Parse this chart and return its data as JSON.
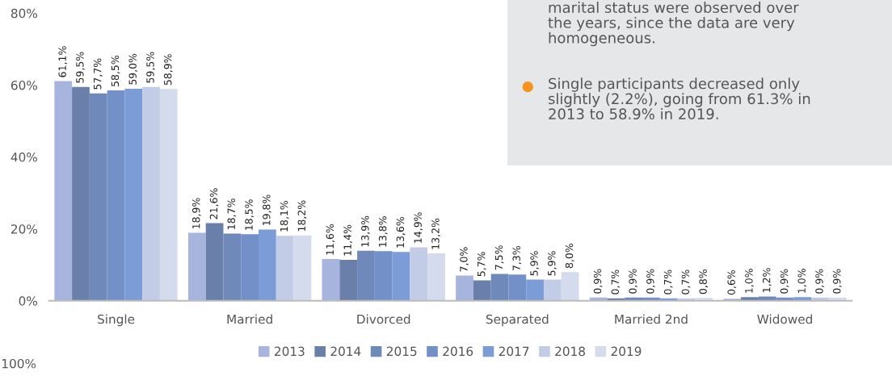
{
  "chart_data": {
    "type": "bar",
    "categories": [
      "Single",
      "Married",
      "Divorced",
      "Separated",
      "Married 2nd",
      "Widowed"
    ],
    "series": [
      {
        "name": "2013",
        "color": "#a7b5de",
        "values": [
          61.1,
          18.9,
          11.6,
          7.0,
          0.9,
          0.6
        ],
        "value_labels": [
          "61,1%",
          "18,9%",
          "11,6%",
          "7,0%",
          "0,9%",
          "0,6%"
        ]
      },
      {
        "name": "2014",
        "color": "#6a80ab",
        "values": [
          59.5,
          21.6,
          11.4,
          5.7,
          0.7,
          1.0
        ],
        "value_labels": [
          "59,5%",
          "21,6%",
          "11,4%",
          "5,7%",
          "0,7%",
          "1,0%"
        ]
      },
      {
        "name": "2015",
        "color": "#6f8aba",
        "values": [
          57.7,
          18.7,
          13.9,
          7.5,
          0.9,
          1.2
        ],
        "value_labels": [
          "57,7%",
          "18,7%",
          "13,9%",
          "7,5%",
          "0,9%",
          "1,2%"
        ]
      },
      {
        "name": "2016",
        "color": "#7391c8",
        "values": [
          58.5,
          18.5,
          13.8,
          7.3,
          0.9,
          0.9
        ],
        "value_labels": [
          "58,5%",
          "18,5%",
          "13,8%",
          "7,3%",
          "0,9%",
          "0,9%"
        ]
      },
      {
        "name": "2017",
        "color": "#7b9cd6",
        "values": [
          59.0,
          19.8,
          13.6,
          5.9,
          0.7,
          1.0
        ],
        "value_labels": [
          "59,0%",
          "19,8%",
          "13,6%",
          "5,9%",
          "0,7%",
          "1,0%"
        ]
      },
      {
        "name": "2018",
        "color": "#c3cce6",
        "values": [
          59.5,
          18.1,
          14.9,
          5.9,
          0.7,
          0.9
        ],
        "value_labels": [
          "59,5%",
          "18,1%",
          "14,9%",
          "5,9%",
          "0,7%",
          "0,9%"
        ]
      },
      {
        "name": "2019",
        "color": "#d4dbed",
        "values": [
          58.9,
          18.2,
          13.2,
          8.0,
          0.8,
          0.9
        ],
        "value_labels": [
          "58,9%",
          "18,2%",
          "13,2%",
          "8,0%",
          "0,8%",
          "0,9%"
        ]
      }
    ],
    "ylim": [
      0,
      80
    ],
    "yticks": [
      {
        "value": 0,
        "label": "0%"
      },
      {
        "value": 20,
        "label": "20%"
      },
      {
        "value": 40,
        "label": "40%"
      },
      {
        "value": 60,
        "label": "60%"
      },
      {
        "value": 80,
        "label": "80%"
      }
    ],
    "grid": false,
    "legend": "bottom",
    "annotations": [
      "marital status were observed over\nthe years, since the data are very\nhomogeneous.",
      "Single participants decreased only\nslightly (2.2%), going from 61.3% in\n2013 to 58.9% in 2019.",
      "100%"
    ]
  }
}
